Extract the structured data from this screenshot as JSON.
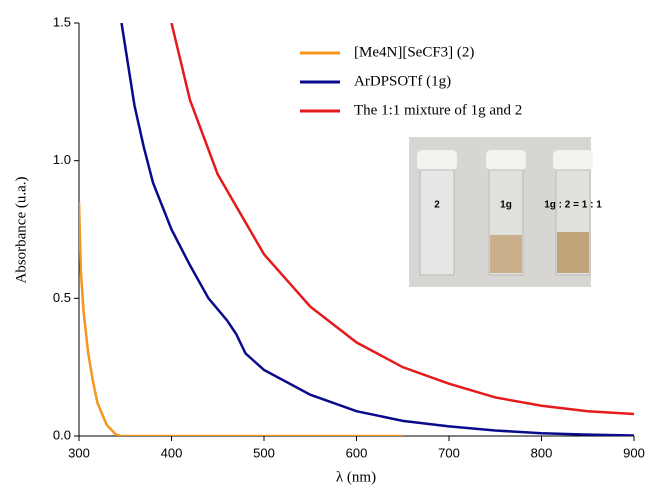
{
  "chart_data": {
    "type": "line",
    "xlabel": "λ (nm)",
    "ylabel": "Absorbance (u.a.)",
    "xlim": [
      300,
      900
    ],
    "ylim": [
      0,
      1.5
    ],
    "xticks": [
      300,
      400,
      500,
      600,
      700,
      800,
      900
    ],
    "yticks": [
      {
        "value": 0,
        "label": "0.0"
      },
      0.5,
      {
        "value": 1,
        "label": "1.0"
      },
      {
        "value": 1.5,
        "label": "1.5"
      }
    ],
    "legend": "top-right",
    "series": [
      {
        "name": "[Me4N][SeCF3] (2)",
        "color": "#f5961e",
        "x": [
          300,
          302,
          305,
          310,
          315,
          320,
          330,
          340,
          345,
          400,
          500,
          600,
          650
        ],
        "values": [
          0.85,
          0.6,
          0.45,
          0.3,
          0.2,
          0.12,
          0.04,
          0.005,
          0,
          0,
          0,
          0,
          0
        ]
      },
      {
        "name": "ArDPSOTf (1g)",
        "color": "#0a0a8c",
        "x": [
          346,
          360,
          370,
          380,
          400,
          420,
          440,
          460,
          470,
          480,
          500,
          550,
          600,
          650,
          700,
          750,
          800,
          850,
          900
        ],
        "values": [
          1.5,
          1.2,
          1.05,
          0.92,
          0.75,
          0.62,
          0.5,
          0.42,
          0.37,
          0.3,
          0.24,
          0.15,
          0.09,
          0.055,
          0.035,
          0.02,
          0.01,
          0.005,
          0.002
        ]
      },
      {
        "name": "The 1:1 mixture of 1g and 2",
        "color": "#e41a1c",
        "x": [
          400,
          420,
          450,
          500,
          550,
          600,
          650,
          700,
          750,
          800,
          850,
          900
        ],
        "values": [
          1.5,
          1.22,
          0.95,
          0.66,
          0.47,
          0.34,
          0.25,
          0.19,
          0.14,
          0.11,
          0.09,
          0.08
        ]
      }
    ],
    "annotations": [
      "2",
      "1g",
      "1g : 2 = 1 : 1"
    ]
  }
}
